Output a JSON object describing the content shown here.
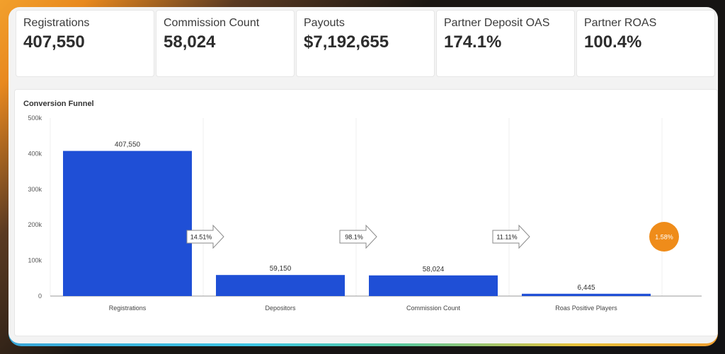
{
  "kpis": [
    {
      "label": "Registrations",
      "value": "407,550"
    },
    {
      "label": "Commission Count",
      "value": "58,024"
    },
    {
      "label": "Payouts",
      "value": "$7,192,655"
    },
    {
      "label": "Partner Deposit OAS",
      "value": "174.1%"
    },
    {
      "label": "Partner ROAS",
      "value": "100.4%"
    }
  ],
  "chart": {
    "title": "Conversion Funnel"
  },
  "chart_data": {
    "type": "bar",
    "title": "Conversion Funnel",
    "categories": [
      "Registrations",
      "Depositors",
      "Commission Count",
      "Roas Positive Players"
    ],
    "values": [
      407550,
      59150,
      58024,
      6445
    ],
    "value_labels": [
      "407,550",
      "59,150",
      "58,024",
      "6,445"
    ],
    "yticks": [
      "0",
      "100k",
      "200k",
      "300k",
      "400k",
      "500k"
    ],
    "ylim": [
      0,
      500000
    ],
    "conversion_rates": [
      "14.51%",
      "98.1%",
      "11.11%",
      "1.58%"
    ],
    "bar_color": "#1f4fd6",
    "final_rate_color": "#ef8c1a",
    "grid": true
  }
}
